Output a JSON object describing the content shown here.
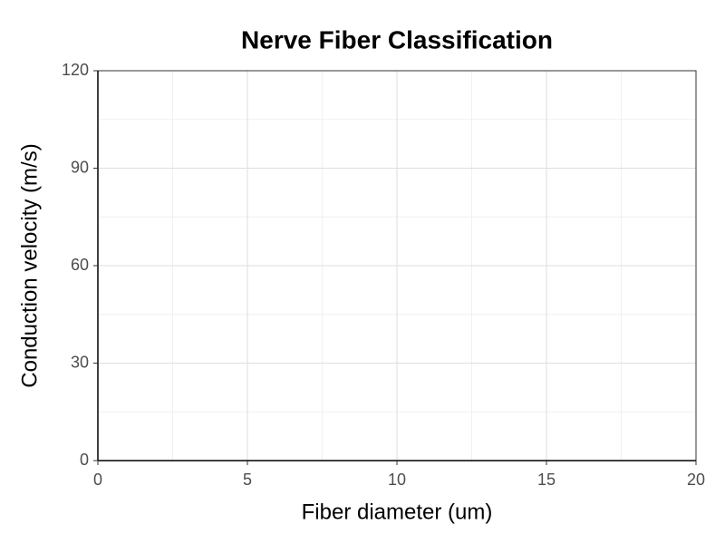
{
  "chart_data": {
    "type": "scatter",
    "title": "Nerve Fiber Classification",
    "x_label": "Fiber diameter (um)",
    "y_label": "Conduction velocity (m/s)",
    "xlim": [
      0,
      20
    ],
    "xticks": [
      0,
      5,
      10,
      15,
      20
    ],
    "ylim": [
      0,
      120
    ],
    "yticks": [
      0,
      30,
      60,
      90,
      120
    ],
    "grid": true
  }
}
